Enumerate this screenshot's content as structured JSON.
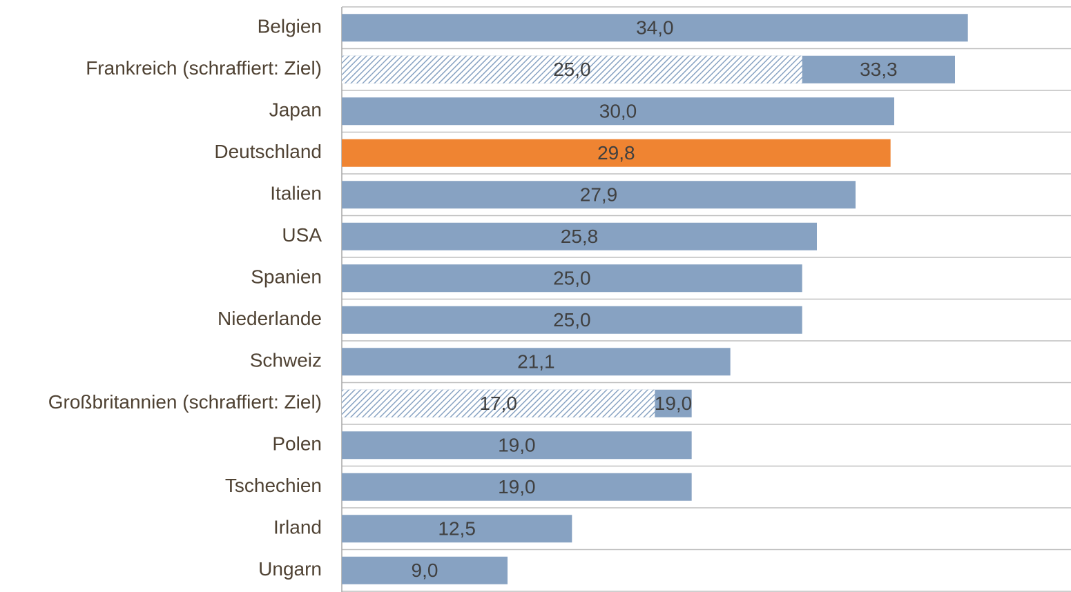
{
  "chart_data": {
    "type": "hbar",
    "categories": [
      "Belgien",
      "Frankreich (schraffiert: Ziel)",
      "Japan",
      "Deutschland",
      "Italien",
      "USA",
      "Spanien",
      "Niederlande",
      "Schweiz",
      "Großbritannien (schraffiert: Ziel)",
      "Polen",
      "Tschechien",
      "Irland",
      "Ungarn"
    ],
    "values": [
      34.0,
      33.3,
      30.0,
      29.8,
      27.9,
      25.8,
      25.0,
      25.0,
      21.1,
      19.0,
      19.0,
      19.0,
      12.5,
      9.0
    ],
    "value_labels": [
      "34,0",
      "33,3",
      "30,0",
      "29,8",
      "27,9",
      "25,8",
      "25,0",
      "25,0",
      "21,1",
      "19,0",
      "19,0",
      "19,0",
      "12,5",
      "9,0"
    ],
    "targets": [
      null,
      25.0,
      null,
      null,
      null,
      null,
      null,
      null,
      null,
      17.0,
      null,
      null,
      null,
      null
    ],
    "target_labels": [
      null,
      "25,0",
      null,
      null,
      null,
      null,
      null,
      null,
      null,
      "17,0",
      null,
      null,
      null,
      null
    ],
    "colors": [
      "#87a2c2",
      "#87a2c2",
      "#87a2c2",
      "#ef8432",
      "#87a2c2",
      "#87a2c2",
      "#87a2c2",
      "#87a2c2",
      "#87a2c2",
      "#87a2c2",
      "#87a2c2",
      "#87a2c2",
      "#87a2c2",
      "#87a2c2"
    ],
    "xlim": [
      0,
      39.6
    ],
    "grid": true
  }
}
